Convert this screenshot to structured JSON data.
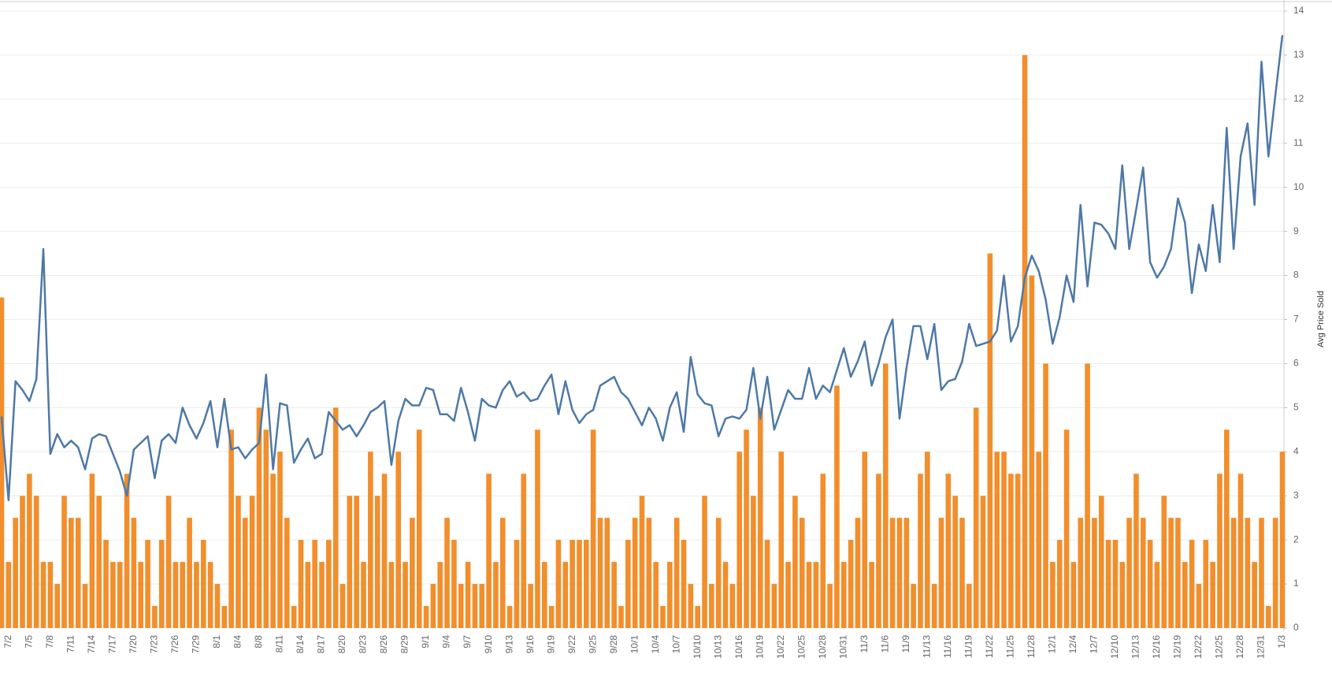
{
  "chart_data": {
    "type": "combo",
    "y_label": "Avg Price Sold",
    "categories": [
      null,
      "7/2",
      null,
      null,
      "7/5",
      null,
      null,
      "7/8",
      null,
      null,
      "7/11",
      null,
      null,
      "7/14",
      null,
      null,
      "7/17",
      null,
      null,
      "7/20",
      null,
      null,
      "7/23",
      null,
      null,
      "7/26",
      null,
      null,
      "7/29",
      null,
      null,
      "8/1",
      null,
      null,
      "8/4",
      null,
      null,
      "8/8",
      null,
      null,
      "8/11",
      null,
      null,
      "8/14",
      null,
      null,
      "8/17",
      null,
      null,
      "8/20",
      null,
      null,
      "8/23",
      null,
      null,
      "8/26",
      null,
      null,
      "8/29",
      null,
      null,
      "9/1",
      null,
      null,
      "9/4",
      null,
      null,
      "9/7",
      null,
      null,
      "9/10",
      null,
      null,
      "9/13",
      null,
      null,
      "9/16",
      null,
      null,
      "9/19",
      null,
      null,
      "9/22",
      null,
      null,
      "9/25",
      null,
      null,
      "9/28",
      null,
      null,
      "10/1",
      null,
      null,
      "10/4",
      null,
      null,
      "10/7",
      null,
      null,
      "10/10",
      null,
      null,
      "10/13",
      null,
      null,
      "10/16",
      null,
      null,
      "10/19",
      null,
      null,
      "10/22",
      null,
      null,
      "10/25",
      null,
      null,
      "10/28",
      null,
      null,
      "10/31",
      null,
      null,
      "11/3",
      null,
      null,
      "11/6",
      null,
      null,
      "11/9",
      null,
      null,
      "11/13",
      null,
      null,
      "11/16",
      null,
      null,
      "11/19",
      null,
      null,
      "11/22",
      null,
      null,
      "11/25",
      null,
      null,
      "11/28",
      null,
      null,
      "12/1",
      null,
      null,
      "12/4",
      null,
      null,
      "12/7",
      null,
      null,
      "12/10",
      null,
      null,
      "12/13",
      null,
      null,
      "12/16",
      null,
      null,
      "12/19",
      null,
      null,
      "12/22",
      null,
      null,
      "12/25",
      null,
      null,
      "12/28",
      null,
      null,
      "12/31",
      null,
      null,
      "1/3"
    ],
    "series": [
      {
        "type": "bar",
        "color": "#f28e2b",
        "values": [
          7.5,
          1.5,
          2.5,
          3,
          3.5,
          3,
          1.5,
          1.5,
          1,
          3,
          2.5,
          2.5,
          1,
          3.5,
          3,
          2,
          1.5,
          1.5,
          3.5,
          2.5,
          1.5,
          2,
          0.5,
          2,
          3,
          1.5,
          1.5,
          2.5,
          1.5,
          2,
          1.5,
          1,
          0.5,
          4.5,
          3,
          2.5,
          3,
          5,
          4.5,
          3.5,
          4,
          2.5,
          0.5,
          2,
          1.5,
          2,
          1.5,
          2,
          5,
          1,
          3,
          3,
          1.5,
          4,
          3,
          3.5,
          1.5,
          4,
          1.5,
          2.5,
          4.5,
          0.5,
          1,
          1.5,
          2.5,
          2,
          1,
          1.5,
          1,
          1,
          3.5,
          1.5,
          2.5,
          0.5,
          2,
          3.5,
          1,
          4.5,
          1.5,
          0.5,
          2,
          1.5,
          2,
          2,
          2,
          4.5,
          2.5,
          2.5,
          1.5,
          0.5,
          2,
          2.5,
          3,
          2.5,
          1.5,
          0.5,
          1.5,
          2.5,
          2,
          1,
          0.5,
          3,
          1,
          2.5,
          1.5,
          1,
          4,
          4.5,
          3,
          5,
          2,
          1,
          4,
          1.5,
          3,
          2.5,
          1.5,
          1.5,
          3.5,
          1,
          5.5,
          1.5,
          2,
          2.5,
          4,
          1.5,
          3.5,
          6,
          2.5,
          2.5,
          2.5,
          1,
          3.5,
          4,
          1,
          2.5,
          3.5,
          3,
          2.5,
          1,
          5,
          3,
          8.5,
          4,
          4,
          3.5,
          3.5,
          13,
          8,
          4,
          6,
          1.5,
          2,
          4.5,
          1.5,
          2.5,
          6,
          2.5,
          3,
          2,
          2,
          1.5,
          2.5,
          3.5,
          2.5,
          2,
          1.5,
          3,
          2.5,
          2.5,
          1.5,
          2,
          1,
          2,
          1.5,
          3.5,
          4.5,
          2.5,
          3.5,
          2.5,
          1.5,
          2.5,
          0.5,
          2.5,
          4
        ]
      },
      {
        "type": "line",
        "color": "#4e79a7",
        "values": [
          4.8,
          2.9,
          5.6,
          5.4,
          5.15,
          5.65,
          8.6,
          3.95,
          4.4,
          4.1,
          4.25,
          4.1,
          3.6,
          4.3,
          4.4,
          4.35,
          3.95,
          3.55,
          3.0,
          4.05,
          4.2,
          4.35,
          3.4,
          4.25,
          4.4,
          4.2,
          5.0,
          4.6,
          4.3,
          4.65,
          5.15,
          4.1,
          5.2,
          4.05,
          4.1,
          3.85,
          4.05,
          4.2,
          5.75,
          3.6,
          5.1,
          5.05,
          3.75,
          4.05,
          4.3,
          3.85,
          3.95,
          4.9,
          4.7,
          4.5,
          4.6,
          4.35,
          4.6,
          4.9,
          5.0,
          5.15,
          3.7,
          4.7,
          5.2,
          5.05,
          5.05,
          5.45,
          5.4,
          4.85,
          4.85,
          4.7,
          5.45,
          4.9,
          4.25,
          5.2,
          5.05,
          5.0,
          5.4,
          5.6,
          5.25,
          5.35,
          5.15,
          5.2,
          5.5,
          5.75,
          4.85,
          5.6,
          4.95,
          4.65,
          4.85,
          4.95,
          5.5,
          5.6,
          5.7,
          5.35,
          5.2,
          4.9,
          4.6,
          5.0,
          4.75,
          4.25,
          5.0,
          5.35,
          4.45,
          6.15,
          5.3,
          5.1,
          5.05,
          4.35,
          4.75,
          4.8,
          4.75,
          4.95,
          5.9,
          4.75,
          5.7,
          4.5,
          4.95,
          5.4,
          5.2,
          5.2,
          5.9,
          5.2,
          5.5,
          5.35,
          5.85,
          6.35,
          5.7,
          6.05,
          6.5,
          5.5,
          6.0,
          6.6,
          7.0,
          4.75,
          5.9,
          6.85,
          6.85,
          6.1,
          6.9,
          5.4,
          5.6,
          5.65,
          6.05,
          6.9,
          6.4,
          6.45,
          6.5,
          6.75,
          8.0,
          6.5,
          6.85,
          7.95,
          8.45,
          8.1,
          7.45,
          6.45,
          7.05,
          8.0,
          7.4,
          9.6,
          7.75,
          9.2,
          9.15,
          8.95,
          8.6,
          10.5,
          8.6,
          9.5,
          10.45,
          8.3,
          7.95,
          8.2,
          8.6,
          9.75,
          9.2,
          7.6,
          8.7,
          8.1,
          9.6,
          8.3,
          11.35,
          8.6,
          10.7,
          11.45,
          9.6,
          12.85,
          10.7,
          12.1,
          13.45
        ]
      }
    ],
    "ylim": [
      0,
      14
    ],
    "yticks": [
      0,
      1,
      2,
      3,
      4,
      5,
      6,
      7,
      8,
      9,
      10,
      11,
      12,
      13,
      14
    ],
    "grid": true
  }
}
